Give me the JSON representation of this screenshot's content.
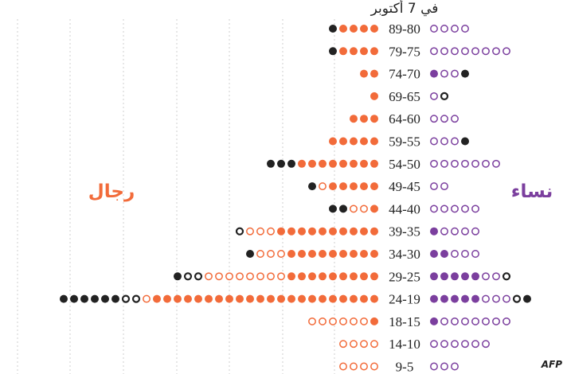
{
  "chart_data": {
    "type": "dot-pyramid",
    "title": "في 7 أكتوبر",
    "left_label": "رجال",
    "right_label": "نساء",
    "credit": "AFP",
    "colors": {
      "men": "#f26b3a",
      "women": "#7b3f9e",
      "black": "#222222",
      "grid": "#cfcfcf"
    },
    "series_codes": {
      "F": "filled colour",
      "O": "outline colour",
      "B": "filled black",
      "K": "outline black"
    },
    "rows": [
      {
        "age": "89-80",
        "men": {
          "F": 4,
          "O": 0,
          "B": 1,
          "K": 0
        },
        "women": {
          "F": 0,
          "O": 4,
          "B": 0,
          "K": 0
        }
      },
      {
        "age": "79-75",
        "men": {
          "F": 4,
          "O": 0,
          "B": 1,
          "K": 0
        },
        "women": {
          "F": 0,
          "O": 8,
          "B": 0,
          "K": 0
        }
      },
      {
        "age": "74-70",
        "men": {
          "F": 2,
          "O": 0,
          "B": 0,
          "K": 0
        },
        "women": {
          "F": 1,
          "O": 2,
          "B": 1,
          "K": 0
        }
      },
      {
        "age": "69-65",
        "men": {
          "F": 1,
          "O": 0,
          "B": 0,
          "K": 0
        },
        "women": {
          "F": 0,
          "O": 1,
          "B": 0,
          "K": 1
        }
      },
      {
        "age": "64-60",
        "men": {
          "F": 3,
          "O": 0,
          "B": 0,
          "K": 0
        },
        "women": {
          "F": 0,
          "O": 3,
          "B": 0,
          "K": 0
        }
      },
      {
        "age": "59-55",
        "men": {
          "F": 5,
          "O": 0,
          "B": 0,
          "K": 0
        },
        "women": {
          "F": 0,
          "O": 3,
          "B": 1,
          "K": 0
        }
      },
      {
        "age": "54-50",
        "men": {
          "F": 8,
          "O": 0,
          "B": 3,
          "K": 0
        },
        "women": {
          "F": 0,
          "O": 7,
          "B": 0,
          "K": 0
        }
      },
      {
        "age": "49-45",
        "men": {
          "F": 5,
          "O": 1,
          "B": 1,
          "K": 0
        },
        "women": {
          "F": 0,
          "O": 2,
          "B": 0,
          "K": 0
        }
      },
      {
        "age": "44-40",
        "men": {
          "F": 1,
          "O": 2,
          "B": 2,
          "K": 0
        },
        "women": {
          "F": 0,
          "O": 5,
          "B": 0,
          "K": 0
        }
      },
      {
        "age": "39-35",
        "men": {
          "F": 10,
          "O": 3,
          "B": 0,
          "K": 1
        },
        "women": {
          "F": 1,
          "O": 4,
          "B": 0,
          "K": 0
        }
      },
      {
        "age": "34-30",
        "men": {
          "F": 9,
          "O": 3,
          "B": 1,
          "K": 0
        },
        "women": {
          "F": 2,
          "O": 3,
          "B": 0,
          "K": 0
        }
      },
      {
        "age": "29-25",
        "men": {
          "F": 9,
          "O": 8,
          "B": 1,
          "K": 2
        },
        "women": {
          "F": 5,
          "O": 2,
          "B": 0,
          "K": 1
        }
      },
      {
        "age": "24-19",
        "men": {
          "F": 22,
          "O": 1,
          "B": 6,
          "K": 2
        },
        "women": {
          "F": 5,
          "O": 3,
          "B": 1,
          "K": 1
        }
      },
      {
        "age": "18-15",
        "men": {
          "F": 1,
          "O": 6,
          "B": 0,
          "K": 0
        },
        "women": {
          "F": 1,
          "O": 7,
          "B": 0,
          "K": 0
        }
      },
      {
        "age": "14-10",
        "men": {
          "F": 0,
          "O": 4,
          "B": 0,
          "K": 0
        },
        "women": {
          "F": 0,
          "O": 6,
          "B": 0,
          "K": 0
        }
      },
      {
        "age": "9-5",
        "men": {
          "F": 0,
          "O": 4,
          "B": 0,
          "K": 0
        },
        "women": {
          "F": 0,
          "O": 3,
          "B": 0,
          "K": 0
        }
      }
    ]
  }
}
